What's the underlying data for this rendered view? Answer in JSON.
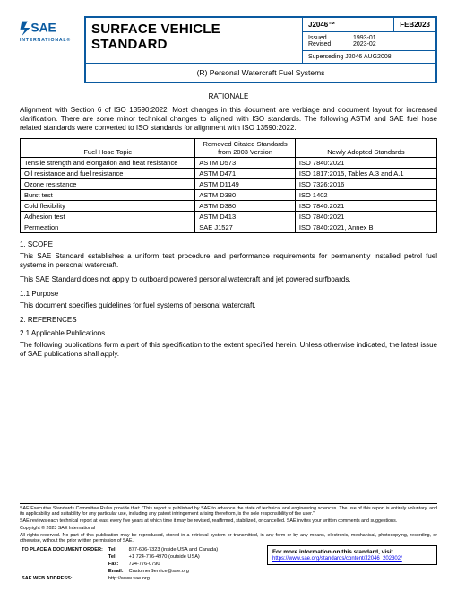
{
  "logo": {
    "international": "INTERNATIONAL®"
  },
  "header": {
    "title": "SURFACE VEHICLE STANDARD",
    "jnum": "J2046™",
    "date": "FEB2023",
    "issued_lbl": "Issued",
    "issued_val": "1993-01",
    "revised_lbl": "Revised",
    "revised_val": "2023-02",
    "superseding": "Superseding J2046 AUG2008",
    "subtitle": "(R) Personal Watercraft Fuel Systems"
  },
  "rationale_head": "RATIONALE",
  "rationale_body": "Alignment with Section 6 of ISO 13590:2022. Most changes in this document are verbiage and document layout for increased clarification. There are some minor technical changes to aligned with ISO standards. The following ASTM and SAE fuel hose related standards were converted to ISO standards for alignment with ISO 13590:2022.",
  "table": {
    "headers": [
      "Fuel Hose Topic",
      "Removed Citated Standards from 2003 Version",
      "Newly Adopted Standards"
    ],
    "rows": [
      [
        "Tensile strength and elongation and heat resistance",
        "ASTM D573",
        "ISO 7840:2021"
      ],
      [
        "Oil resistance and fuel resistance",
        "ASTM D471",
        "ISO 1817:2015, Tables A.3 and A.1"
      ],
      [
        "Ozone resistance",
        "ASTM D1149",
        "ISO 7326:2016"
      ],
      [
        "Burst test",
        "ASTM D380",
        "ISO 1402"
      ],
      [
        "Cold flexibility",
        "ASTM D380",
        "ISO 7840:2021"
      ],
      [
        "Adhesion test",
        "ASTM D413",
        "ISO 7840:2021"
      ],
      [
        "Permeation",
        "SAE J1527",
        "ISO 7840:2021, Annex B"
      ]
    ],
    "col_widths": [
      "42%",
      "24%",
      "34%"
    ]
  },
  "sections": {
    "s1": "1.   SCOPE",
    "s1_p1": "This SAE Standard establishes a uniform test procedure and performance requirements for permanently installed petrol fuel systems in personal watercraft.",
    "s1_p2": "This SAE Standard does not apply to outboard powered personal watercraft and jet powered surfboards.",
    "s1_1": "1.1   Purpose",
    "s1_1_p": "This document specifies guidelines for fuel systems of personal watercraft.",
    "s2": "2.   REFERENCES",
    "s2_1": "2.1   Applicable Publications",
    "s2_1_p": "The following publications form a part of this specification to the extent specified herein. Unless otherwise indicated, the latest issue of SAE publications shall apply."
  },
  "footer": {
    "fine1": "SAE Executive Standards Committee Rules provide that: \"This report is published by SAE to advance the state of technical and engineering sciences. The use of this report is entirely voluntary, and its applicability and suitability for any particular use, including any patent infringement arising therefrom, is the sole responsibility of the user.\"",
    "fine2": "SAE reviews each technical report at least every five years at which time it may be revised, reaffirmed, stabilized, or cancelled. SAE invites your written comments and suggestions.",
    "copyright": "Copyright © 2023 SAE International",
    "fine3": "All rights reserved. No part of this publication may be reproduced, stored in a retrieval system or transmitted, in any form or by any means, electronic, mechanical, photocopying, recording, or otherwise, without the prior written permission of SAE.",
    "order_lbl": "TO PLACE A DOCUMENT ORDER:",
    "tel_lbl": "Tel:",
    "tel1": "877-606-7323 (inside USA and Canada)",
    "tel_lbl2": "Tel:",
    "tel2": "+1 724-776-4970 (outside USA)",
    "fax_lbl": "Fax:",
    "fax": "724-776-0790",
    "email_lbl": "Email:",
    "email": "CustomerService@sae.org",
    "web_lbl": "SAE WEB ADDRESS:",
    "web": "http://www.sae.org",
    "info_title": "For more information on this standard, visit",
    "info_url": "https://www.sae.org/standards/content/J2046_202302/"
  }
}
